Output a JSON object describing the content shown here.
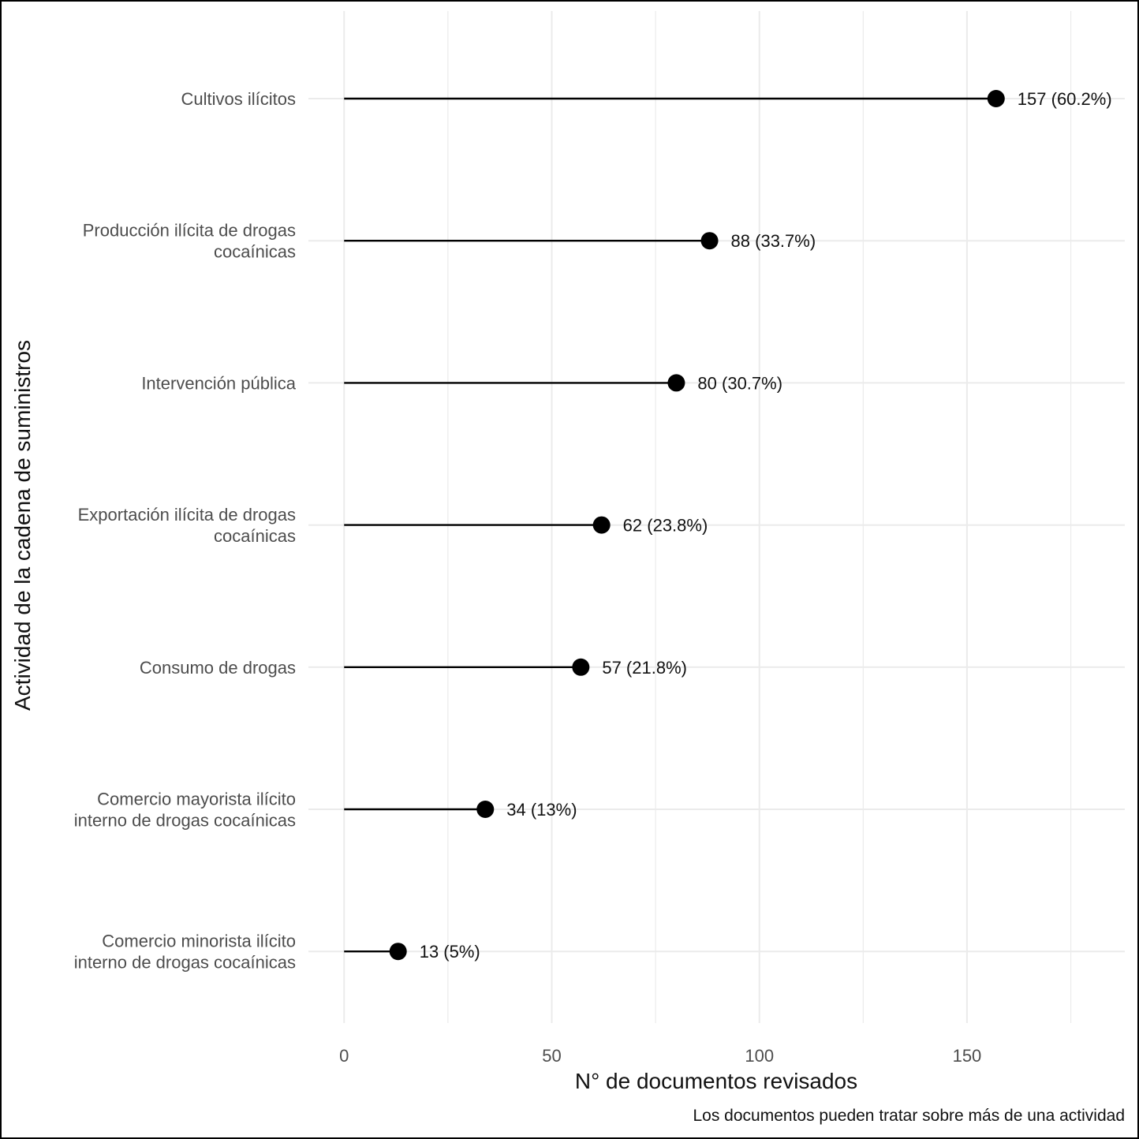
{
  "chart_data": {
    "type": "lollipop",
    "orientation": "horizontal",
    "categories": [
      [
        "Cultivos ilícitos"
      ],
      [
        "Producción ilícita de drogas",
        "cocaínicas"
      ],
      [
        "Intervención pública"
      ],
      [
        "Exportación ilícita de drogas",
        "cocaínicas"
      ],
      [
        "Consumo de drogas"
      ],
      [
        "Comercio mayorista ilícito",
        "interno de drogas cocaínicas"
      ],
      [
        "Comercio minorista ilícito",
        "interno de drogas cocaínicas"
      ]
    ],
    "values": [
      157,
      88,
      80,
      62,
      57,
      34,
      13
    ],
    "data_labels": [
      "157 (60.2%)",
      "88 (33.7%)",
      "80 (30.7%)",
      "62 (23.8%)",
      "57 (21.8%)",
      "34 (13%)",
      "13 (5%)"
    ],
    "xlabel": "N° de documentos revisados",
    "ylabel": "Actividad de la cadena de suministros",
    "caption": "Los documentos pueden tratar sobre más de una actividad",
    "xticks": [
      0,
      50,
      100,
      150
    ],
    "xticklabels": [
      "0",
      "50",
      "100",
      "150"
    ],
    "xlim": [
      -8.6,
      188
    ],
    "grid": true,
    "colors": {
      "point": "#000000",
      "line": "#000000",
      "grid": "#ebebeb"
    }
  }
}
